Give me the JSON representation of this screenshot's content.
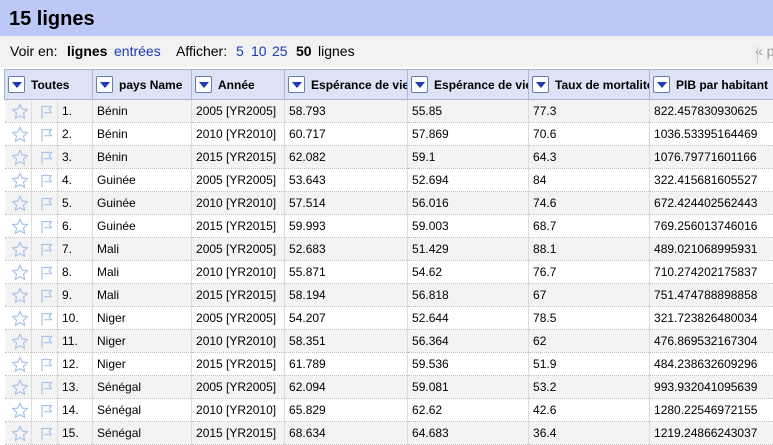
{
  "title": "15 lignes",
  "controls": {
    "view_label": "Voir en:",
    "view_rows": "lignes",
    "view_records": "entrées",
    "show_label": "Afficher:",
    "page_sizes": [
      "5",
      "10",
      "25",
      "50"
    ],
    "page_size_selected": "50",
    "rows_word": "lignes",
    "pager_prev": "« p"
  },
  "columns": [
    "Toutes",
    "pays Name",
    "Année",
    "Espérance de vie",
    "Espérance de vie",
    "Taux de mortalité",
    "PIB par habitant"
  ],
  "rows": [
    {
      "idx": "1.",
      "pays": "Bénin",
      "annee": "2005 [YR2005]",
      "e1": "58.793",
      "e2": "55.85",
      "mort": "77.3",
      "pib": "822.457830930625"
    },
    {
      "idx": "2.",
      "pays": "Bénin",
      "annee": "2010 [YR2010]",
      "e1": "60.717",
      "e2": "57.869",
      "mort": "70.6",
      "pib": "1036.53395164469"
    },
    {
      "idx": "3.",
      "pays": "Bénin",
      "annee": "2015 [YR2015]",
      "e1": "62.082",
      "e2": "59.1",
      "mort": "64.3",
      "pib": "1076.79771601166"
    },
    {
      "idx": "4.",
      "pays": "Guinée",
      "annee": "2005 [YR2005]",
      "e1": "53.643",
      "e2": "52.694",
      "mort": "84",
      "pib": "322.415681605527"
    },
    {
      "idx": "5.",
      "pays": "Guinée",
      "annee": "2010 [YR2010]",
      "e1": "57.514",
      "e2": "56.016",
      "mort": "74.6",
      "pib": "672.424402562443"
    },
    {
      "idx": "6.",
      "pays": "Guinée",
      "annee": "2015 [YR2015]",
      "e1": "59.993",
      "e2": "59.003",
      "mort": "68.7",
      "pib": "769.256013746016"
    },
    {
      "idx": "7.",
      "pays": "Mali",
      "annee": "2005 [YR2005]",
      "e1": "52.683",
      "e2": "51.429",
      "mort": "88.1",
      "pib": "489.021068995931"
    },
    {
      "idx": "8.",
      "pays": "Mali",
      "annee": "2010 [YR2010]",
      "e1": "55.871",
      "e2": "54.62",
      "mort": "76.7",
      "pib": "710.274202175837"
    },
    {
      "idx": "9.",
      "pays": "Mali",
      "annee": "2015 [YR2015]",
      "e1": "58.194",
      "e2": "56.818",
      "mort": "67",
      "pib": "751.474788898858"
    },
    {
      "idx": "10.",
      "pays": "Niger",
      "annee": "2005 [YR2005]",
      "e1": "54.207",
      "e2": "52.644",
      "mort": "78.5",
      "pib": "321.723826480034"
    },
    {
      "idx": "11.",
      "pays": "Niger",
      "annee": "2010 [YR2010]",
      "e1": "58.351",
      "e2": "56.364",
      "mort": "62",
      "pib": "476.869532167304"
    },
    {
      "idx": "12.",
      "pays": "Niger",
      "annee": "2015 [YR2015]",
      "e1": "61.789",
      "e2": "59.536",
      "mort": "51.9",
      "pib": "484.238632609296"
    },
    {
      "idx": "13.",
      "pays": "Sénégal",
      "annee": "2005 [YR2005]",
      "e1": "62.094",
      "e2": "59.081",
      "mort": "53.2",
      "pib": "993.932041095639"
    },
    {
      "idx": "14.",
      "pays": "Sénégal",
      "annee": "2010 [YR2010]",
      "e1": "65.829",
      "e2": "62.62",
      "mort": "42.6",
      "pib": "1280.22546972155"
    },
    {
      "idx": "15.",
      "pays": "Sénégal",
      "annee": "2015 [YR2015]",
      "e1": "68.634",
      "e2": "64.683",
      "mort": "36.4",
      "pib": "1219.24866243037"
    }
  ],
  "row_icons": [
    "star-icon",
    "flag-icon"
  ],
  "colors": {
    "title_bg": "#bcc8f5",
    "header_bg": "#dce3f6",
    "link": "#1c3bb8"
  }
}
